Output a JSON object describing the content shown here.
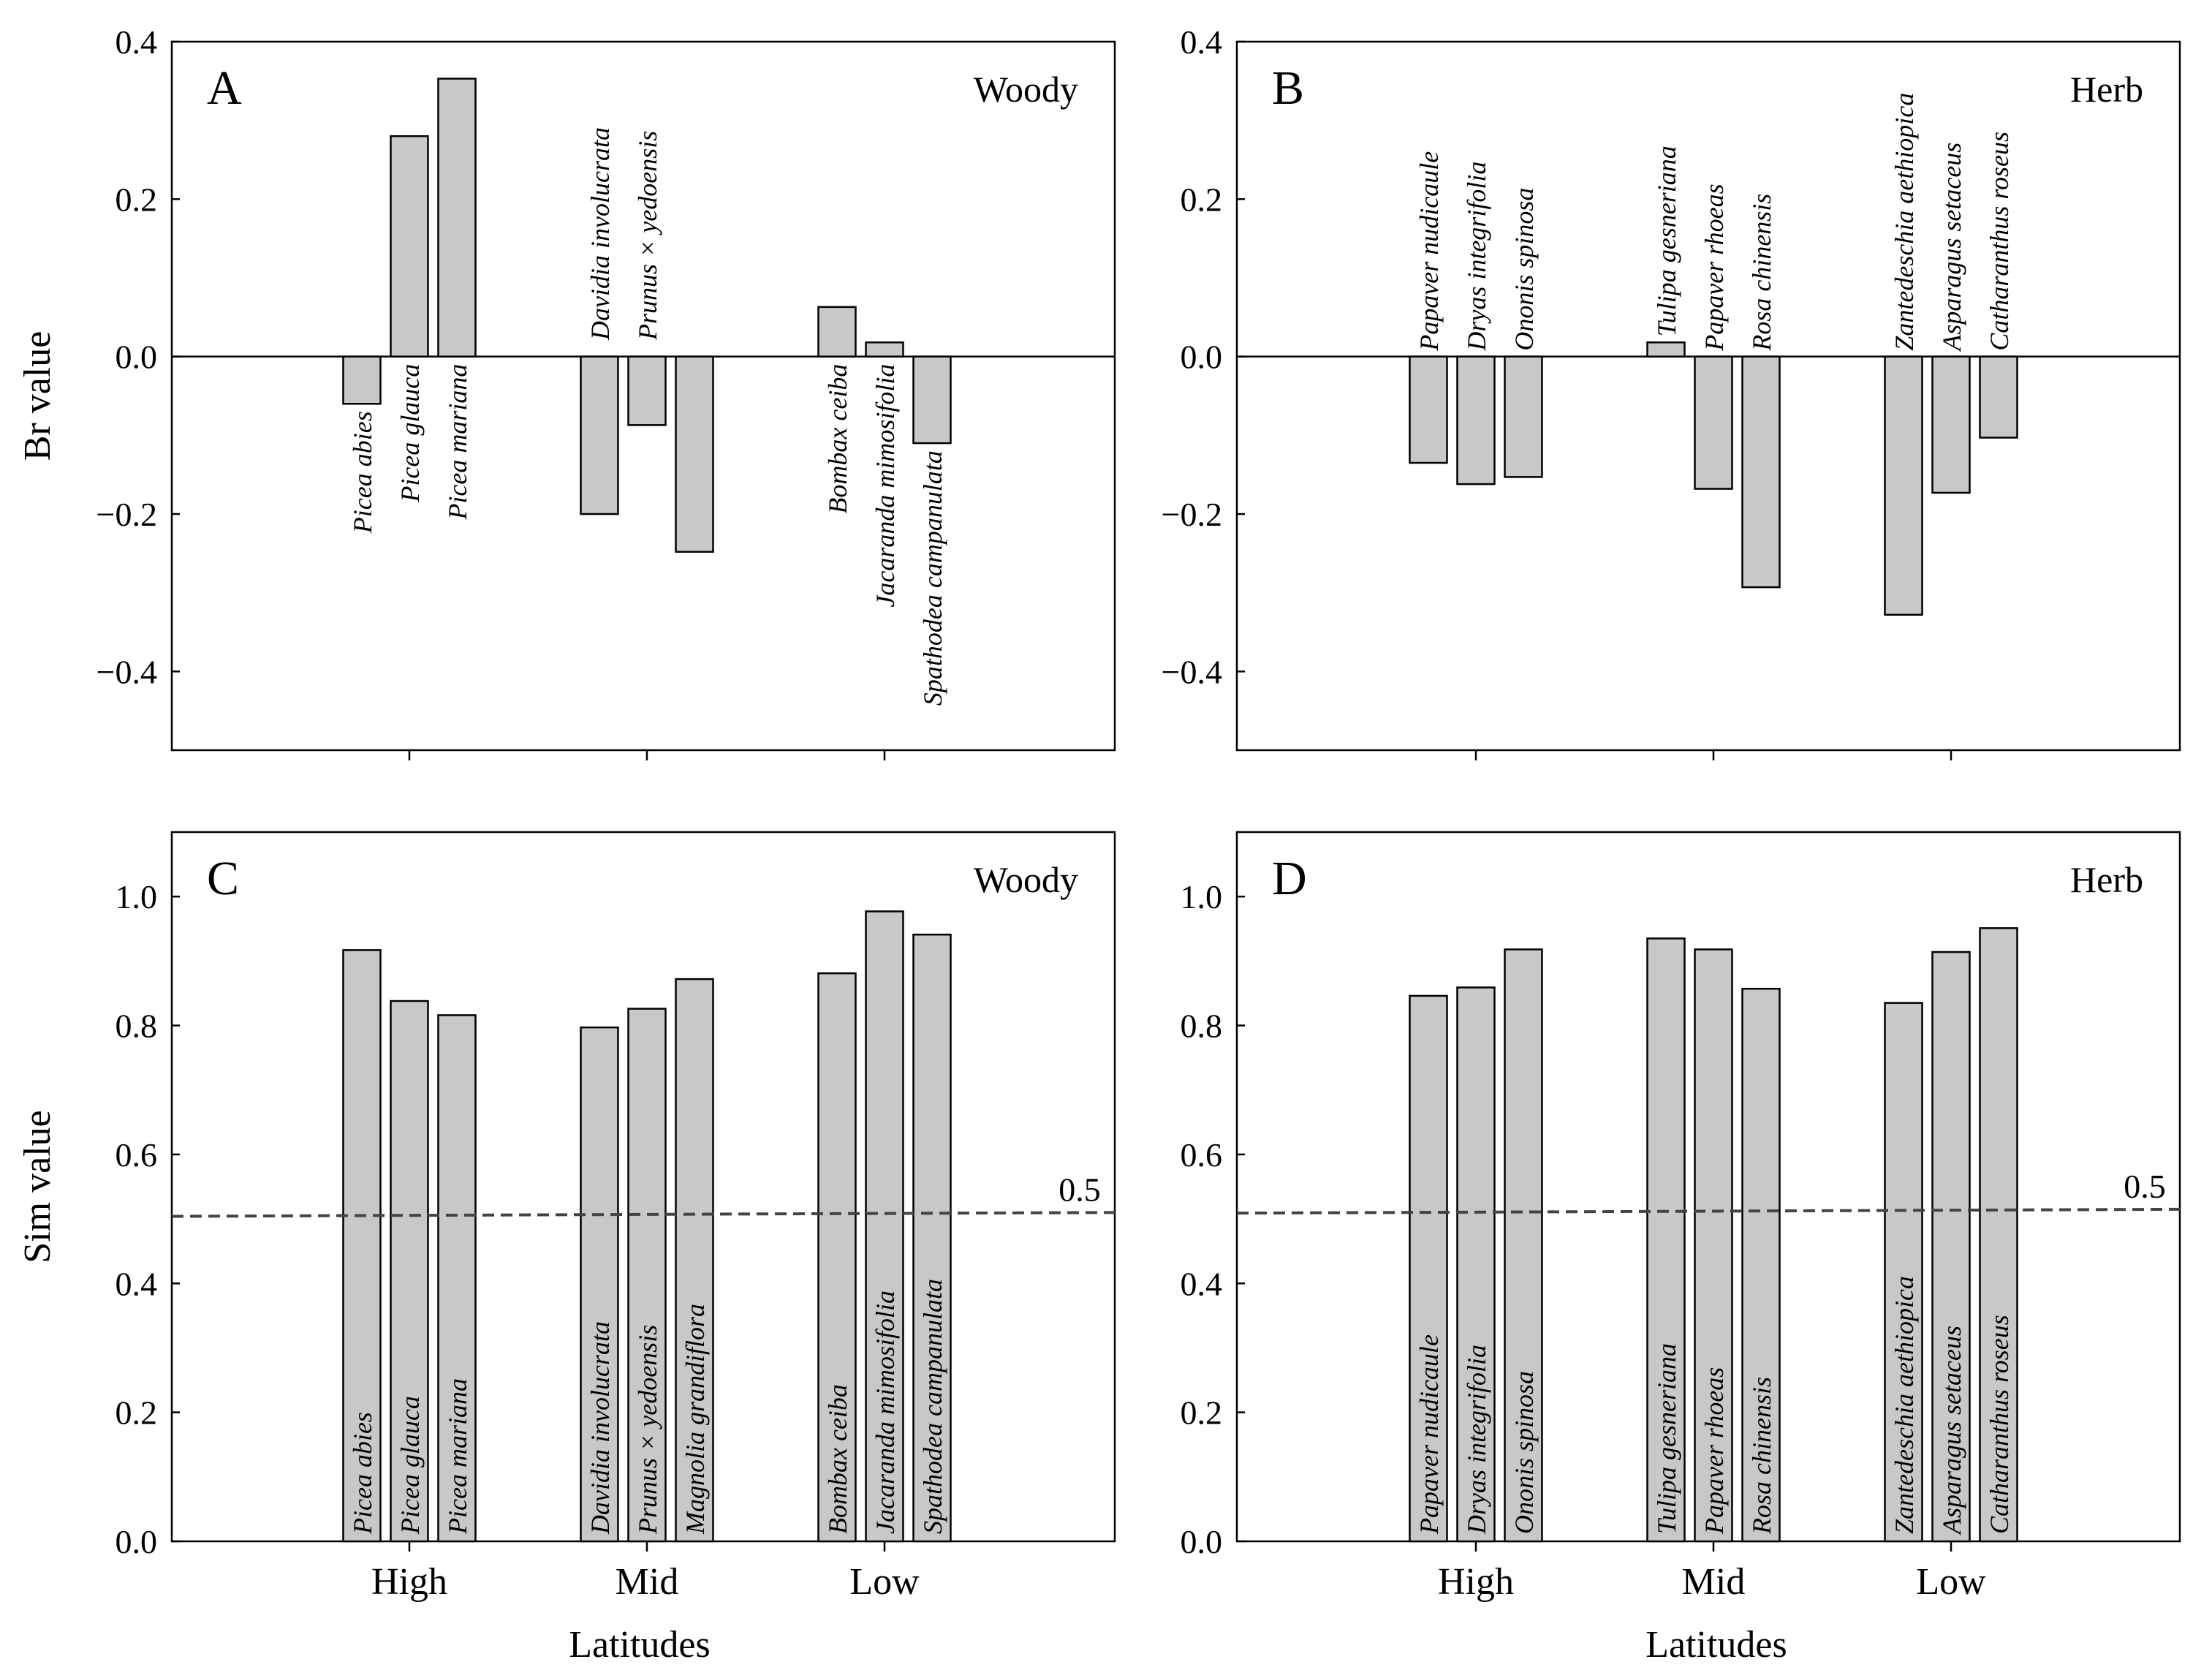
{
  "figure": {
    "x_axis_title": "Latitudes",
    "groups": [
      "High",
      "Mid",
      "Low"
    ]
  },
  "chart_data": [
    {
      "id": "A",
      "type": "bar",
      "panel_letter": "A",
      "panel_type": "Woody",
      "ylabel": "Br value",
      "ylim": [
        -0.5,
        0.4
      ],
      "yticks": [
        "0.4",
        "0.2",
        "0.0",
        "−0.2",
        "−0.4"
      ],
      "categories": [
        "High",
        "Mid",
        "Low"
      ],
      "bars": [
        {
          "species": "Picea abies",
          "group": "High",
          "value": -0.06
        },
        {
          "species": "Picea glauca",
          "group": "High",
          "value": 0.28
        },
        {
          "species": "Picea mariana",
          "group": "High",
          "value": 0.353
        },
        {
          "species": "Davidia involucrata",
          "group": "Mid",
          "value": -0.2
        },
        {
          "species": "Prunus × yedoensis",
          "group": "Mid",
          "value": -0.087
        },
        {
          "species": "",
          "group": "Mid",
          "value": -0.248
        },
        {
          "species": "Bombax ceiba",
          "group": "Low",
          "value": 0.063
        },
        {
          "species": "Jacaranda mimosifolia",
          "group": "Low",
          "value": 0.018
        },
        {
          "species": "Spathodea campanulata",
          "group": "Low",
          "value": -0.11
        }
      ]
    },
    {
      "id": "B",
      "type": "bar",
      "panel_letter": "B",
      "panel_type": "Herb",
      "ylabel": "",
      "ylim": [
        -0.5,
        0.4
      ],
      "yticks": [
        "0.4",
        "0.2",
        "0.0",
        "−0.2",
        "−0.4"
      ],
      "categories": [
        "High",
        "Mid",
        "Low"
      ],
      "bars": [
        {
          "species": "Papaver nudicaule",
          "group": "High",
          "value": -0.135
        },
        {
          "species": "Dryas integrifolia",
          "group": "High",
          "value": -0.162
        },
        {
          "species": "Ononis spinosa",
          "group": "High",
          "value": -0.153
        },
        {
          "species": "Tulipa gesneriana",
          "group": "Mid",
          "value": 0.018
        },
        {
          "species": "Papaver rhoeas",
          "group": "Mid",
          "value": -0.168
        },
        {
          "species": "Rosa chinensis",
          "group": "Mid",
          "value": -0.293
        },
        {
          "species": "Zantedeschia aethiopica",
          "group": "Low",
          "value": -0.328
        },
        {
          "species": "Asparagus setaceus",
          "group": "Low",
          "value": -0.173
        },
        {
          "species": "Catharanthus roseus",
          "group": "Low",
          "value": -0.103
        }
      ]
    },
    {
      "id": "C",
      "type": "bar",
      "panel_letter": "C",
      "panel_type": "Woody",
      "ylabel": "Sim value",
      "ylim": [
        0,
        1.1
      ],
      "yticks": [
        "1.0",
        "0.8",
        "0.6",
        "0.4",
        "0.2",
        "0.0"
      ],
      "reference_line": {
        "label": "0.5",
        "y_start": 0.504,
        "y_end": 0.51
      },
      "categories": [
        "High",
        "Mid",
        "Low"
      ],
      "bars": [
        {
          "species": "Picea abies",
          "group": "High",
          "value": 0.917
        },
        {
          "species": "Picea glauca",
          "group": "High",
          "value": 0.838
        },
        {
          "species": "Picea mariana",
          "group": "High",
          "value": 0.816
        },
        {
          "species": "Davidia involucrata",
          "group": "Mid",
          "value": 0.797
        },
        {
          "species": "Prunus × yedoensis",
          "group": "Mid",
          "value": 0.826
        },
        {
          "species": "Magnolia grandiflora",
          "group": "Mid",
          "value": 0.872
        },
        {
          "species": "Bombax ceiba",
          "group": "Low",
          "value": 0.881
        },
        {
          "species": "Jacaranda mimosifolia",
          "group": "Low",
          "value": 0.977
        },
        {
          "species": "Spathodea campanulata",
          "group": "Low",
          "value": 0.941
        }
      ]
    },
    {
      "id": "D",
      "type": "bar",
      "panel_letter": "D",
      "panel_type": "Herb",
      "ylabel": "",
      "ylim": [
        0,
        1.1
      ],
      "yticks": [
        "1.0",
        "0.8",
        "0.6",
        "0.4",
        "0.2",
        "0.0"
      ],
      "reference_line": {
        "label": "0.5",
        "y_start": 0.509,
        "y_end": 0.515
      },
      "categories": [
        "High",
        "Mid",
        "Low"
      ],
      "bars": [
        {
          "species": "Papaver nudicaule",
          "group": "High",
          "value": 0.846
        },
        {
          "species": "Dryas integrifolia",
          "group": "High",
          "value": 0.859
        },
        {
          "species": "Ononis spinosa",
          "group": "High",
          "value": 0.918
        },
        {
          "species": "Tulipa gesneriana",
          "group": "Mid",
          "value": 0.935
        },
        {
          "species": "Papaver rhoeas",
          "group": "Mid",
          "value": 0.918
        },
        {
          "species": "Rosa chinensis",
          "group": "Mid",
          "value": 0.857
        },
        {
          "species": "Zantedeschia aethiopica",
          "group": "Low",
          "value": 0.835
        },
        {
          "species": "Asparagus setaceus",
          "group": "Low",
          "value": 0.914
        },
        {
          "species": "Catharanthus roseus",
          "group": "Low",
          "value": 0.951
        }
      ]
    }
  ]
}
